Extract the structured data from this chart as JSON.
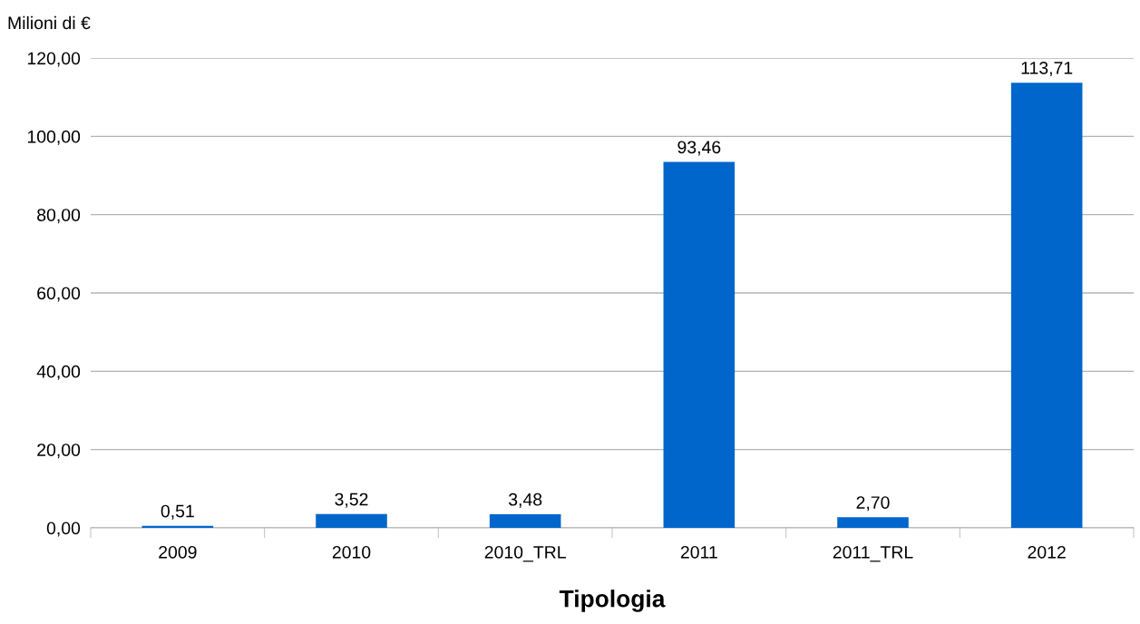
{
  "chart_data": {
    "type": "bar",
    "ylabel": "Milioni di €",
    "xlabel": "Tipologia",
    "categories": [
      "2009",
      "2010",
      "2010_TRL",
      "2011",
      "2011_TRL",
      "2012"
    ],
    "values": [
      0.51,
      3.52,
      3.48,
      93.46,
      2.7,
      113.71
    ],
    "value_labels": [
      "0,51",
      "3,52",
      "3,48",
      "93,46",
      "2,70",
      "113,71"
    ],
    "color": "#0066cc",
    "ylim": [
      0,
      120
    ],
    "yticks": [
      {
        "value": 0,
        "label": "0,00"
      },
      {
        "value": 20,
        "label": "20,00"
      },
      {
        "value": 40,
        "label": "40,00"
      },
      {
        "value": 60,
        "label": "60,00"
      },
      {
        "value": 80,
        "label": "80,00"
      },
      {
        "value": 100,
        "label": "100,00"
      },
      {
        "value": 120,
        "label": "120,00"
      }
    ],
    "grid": "y",
    "legend": false
  }
}
